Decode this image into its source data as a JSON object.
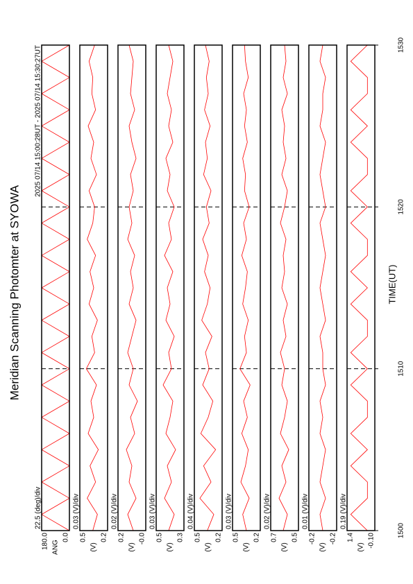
{
  "chart_data": {
    "type": "line",
    "title": "Meridian Scanning Photomter at SYOWA",
    "subtitle": "2025 07/14 15:00:28UT - 2025 07/14 15:30:27UT",
    "xlabel": "TIME(UT)",
    "xlim": [
      1500,
      1530
    ],
    "xticks": [
      1500,
      1510,
      1520,
      1530
    ],
    "x": [
      1500,
      1501,
      1502,
      1503,
      1504,
      1505,
      1506,
      1507,
      1508,
      1509,
      1510,
      1511,
      1512,
      1513,
      1514,
      1515,
      1516,
      1517,
      1518,
      1519,
      1520,
      1521,
      1522,
      1523,
      1524,
      1525,
      1526,
      1527,
      1528,
      1529,
      1530
    ],
    "panels": [
      {
        "scale": "22.5 (deg)/div",
        "ylabel": "ANG",
        "color": "#ff0000",
        "ylim": [
          0,
          180
        ],
        "yticks": [
          {
            "value": 180,
            "label": "180.0"
          },
          {
            "value": 0,
            "label": "0.0"
          }
        ],
        "values": [
          0,
          180,
          0,
          180,
          0,
          180,
          0,
          180,
          0,
          180,
          0,
          180,
          0,
          180,
          0,
          180,
          0,
          180,
          0,
          180,
          0,
          180,
          0,
          180,
          0,
          180,
          0,
          180,
          0,
          180,
          0
        ]
      },
      {
        "scale": "0.03 (V)/div",
        "ylabel": "(V)",
        "color": "#ff0000",
        "ylim": [
          0.2,
          0.5
        ],
        "yticks": [
          0.5,
          0.2
        ],
        "values": [
          0.36,
          0.31,
          0.42,
          0.33,
          0.39,
          0.3,
          0.41,
          0.35,
          0.38,
          0.32,
          0.43,
          0.34,
          0.37,
          0.31,
          0.4,
          0.35,
          0.39,
          0.33,
          0.42,
          0.36,
          0.34,
          0.4,
          0.32,
          0.38,
          0.35,
          0.41,
          0.33,
          0.37,
          0.36,
          0.4,
          0.34
        ]
      },
      {
        "scale": "0.02 (V)/div",
        "ylabel": "(V)",
        "color": "#ff0000",
        "ylim": [
          0,
          0.2
        ],
        "yticks": [
          0.2,
          {
            "value": 0,
            "label": "-0.0"
          }
        ],
        "values": [
          0.09,
          0.13,
          0.07,
          0.12,
          0.1,
          0.14,
          0.08,
          0.11,
          0.06,
          0.12,
          0.09,
          0.13,
          0.1,
          0.07,
          0.12,
          0.09,
          0.11,
          0.08,
          0.13,
          0.1,
          0.12,
          0.09,
          0.11,
          0.07,
          0.1,
          0.12,
          0.08,
          0.11,
          0.1,
          0.09,
          0.12
        ]
      },
      {
        "scale": "0.03 (V)/div",
        "ylabel": "(V)",
        "color": "#ff0000",
        "ylim": [
          0.3,
          0.5
        ],
        "yticks": [
          0.5,
          0.3
        ],
        "values": [
          0.41,
          0.37,
          0.44,
          0.39,
          0.42,
          0.36,
          0.43,
          0.4,
          0.38,
          0.45,
          0.39,
          0.41,
          0.37,
          0.43,
          0.4,
          0.42,
          0.38,
          0.44,
          0.39,
          0.41,
          0.37,
          0.42,
          0.4,
          0.43,
          0.38,
          0.41,
          0.39,
          0.42,
          0.4,
          0.38,
          0.41
        ]
      },
      {
        "scale": "0.04 (V)/div",
        "ylabel": "(V)",
        "color": "#ff0000",
        "ylim": [
          0.2,
          0.5
        ],
        "yticks": [
          0.5,
          0.2
        ],
        "values": [
          0.36,
          0.29,
          0.44,
          0.32,
          0.4,
          0.27,
          0.43,
          0.35,
          0.3,
          0.41,
          0.34,
          0.38,
          0.31,
          0.42,
          0.36,
          0.33,
          0.39,
          0.35,
          0.41,
          0.34,
          0.37,
          0.32,
          0.4,
          0.36,
          0.38,
          0.33,
          0.39,
          0.35,
          0.37,
          0.34,
          0.38
        ]
      },
      {
        "scale": "0.03 (V)/div",
        "ylabel": "(V)",
        "color": "#ff0000",
        "ylim": [
          0.2,
          0.5
        ],
        "yticks": [
          0.5,
          0.2
        ],
        "values": [
          0.35,
          0.39,
          0.32,
          0.41,
          0.36,
          0.33,
          0.4,
          0.34,
          0.38,
          0.31,
          0.42,
          0.35,
          0.37,
          0.33,
          0.39,
          0.36,
          0.34,
          0.4,
          0.35,
          0.38,
          0.32,
          0.37,
          0.36,
          0.39,
          0.34,
          0.37,
          0.35,
          0.38,
          0.33,
          0.36,
          0.37
        ]
      },
      {
        "scale": "0.02 (V)/div",
        "ylabel": "(V)",
        "color": "#ff0000",
        "ylim": [
          0.5,
          0.7
        ],
        "yticks": [
          0.7,
          0.5
        ],
        "values": [
          0.61,
          0.58,
          0.64,
          0.59,
          0.62,
          0.57,
          0.63,
          0.6,
          0.58,
          0.62,
          0.6,
          0.63,
          0.59,
          0.61,
          0.58,
          0.62,
          0.6,
          0.61,
          0.59,
          0.63,
          0.6,
          0.58,
          0.62,
          0.59,
          0.61,
          0.6,
          0.62,
          0.58,
          0.61,
          0.59,
          0.6
        ]
      },
      {
        "scale": "0.01 (V)/div",
        "ylabel": "(V)",
        "color": "#ff0000",
        "ylim": [
          -0.25,
          -0.15
        ],
        "yticks": [
          {
            "value": -0.15,
            "label": "-0.2"
          },
          {
            "value": -0.25,
            "label": "-0.2"
          }
        ],
        "values": [
          -0.2,
          -0.19,
          -0.21,
          -0.19,
          -0.2,
          -0.21,
          -0.19,
          -0.2,
          -0.19,
          -0.21,
          -0.2,
          -0.2,
          -0.19,
          -0.21,
          -0.2,
          -0.19,
          -0.2,
          -0.21,
          -0.2,
          -0.19,
          -0.21,
          -0.2,
          -0.19,
          -0.2,
          -0.21,
          -0.19,
          -0.2,
          -0.2,
          -0.21,
          -0.19,
          -0.2
        ]
      },
      {
        "scale": "0.19 (V)/div",
        "ylabel": "(V)",
        "color": "#ff0000",
        "ylim": [
          -0.1,
          1.4
        ],
        "yticks": [
          1.4,
          {
            "value": -0.1,
            "label": "-0.10"
          }
        ],
        "values": [
          0.3,
          1.2,
          0.3,
          0.3,
          1.2,
          0.3,
          1.2,
          0.3,
          0.3,
          1.2,
          0.3,
          1.2,
          0.3,
          0.3,
          1.2,
          0.3,
          1.2,
          0.3,
          0.3,
          1.2,
          0.3,
          1.2,
          0.3,
          0.3,
          1.2,
          0.3,
          1.2,
          0.3,
          0.3,
          1.2,
          0.3
        ]
      }
    ]
  }
}
